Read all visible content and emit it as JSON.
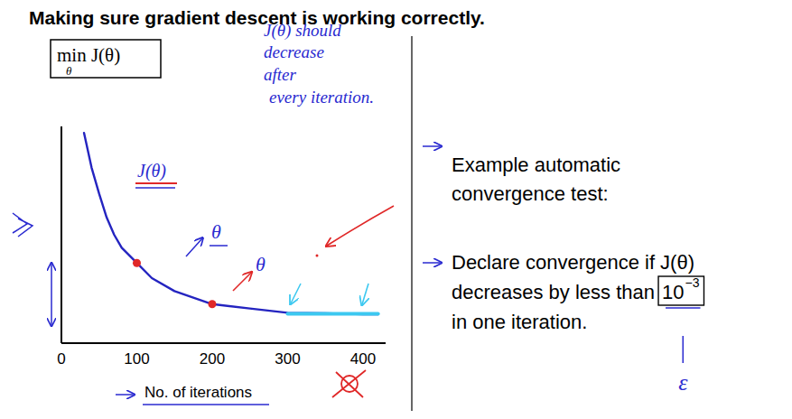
{
  "chart_data": {
    "type": "line",
    "title": "Making sure gradient descent is working correctly.",
    "xlabel": "No. of iterations",
    "ylabel": "min J(θ)",
    "ylabel_sub": "θ",
    "x": [
      30,
      40,
      50,
      60,
      70,
      80,
      100,
      120,
      150,
      200,
      250,
      300,
      350,
      400,
      420
    ],
    "values": [
      0.97,
      0.81,
      0.69,
      0.58,
      0.5,
      0.44,
      0.37,
      0.3,
      0.24,
      0.18,
      0.16,
      0.14,
      0.138,
      0.133,
      0.133
    ],
    "color": "#2424c0",
    "xlim": [
      0,
      430
    ],
    "ylim": [
      0,
      1
    ],
    "xticks": [
      0,
      100,
      200,
      300,
      400
    ],
    "tick_labels": "x",
    "markers": {
      "x": [
        100,
        200
      ],
      "values": [
        0.37,
        0.18
      ],
      "color": "#e02828"
    },
    "converged": {
      "x": [
        300,
        420
      ],
      "values": [
        0.135,
        0.135
      ],
      "color": "#3cc8f0"
    },
    "annotations": {
      "should_decrease": [
        "J(θ) should",
        "decrease",
        "after",
        "every iteration."
      ],
      "curve_label": "J(θ)",
      "theta": "θ",
      "epsilon": "ε",
      "convergence_test": {
        "heading": [
          "Example automatic",
          "convergence test:"
        ],
        "rule": [
          "Declare convergence if J(θ)",
          "decreases by less than",
          "in one iteration."
        ],
        "threshold": {
          "base": "10",
          "exponent": "−3"
        }
      }
    }
  }
}
